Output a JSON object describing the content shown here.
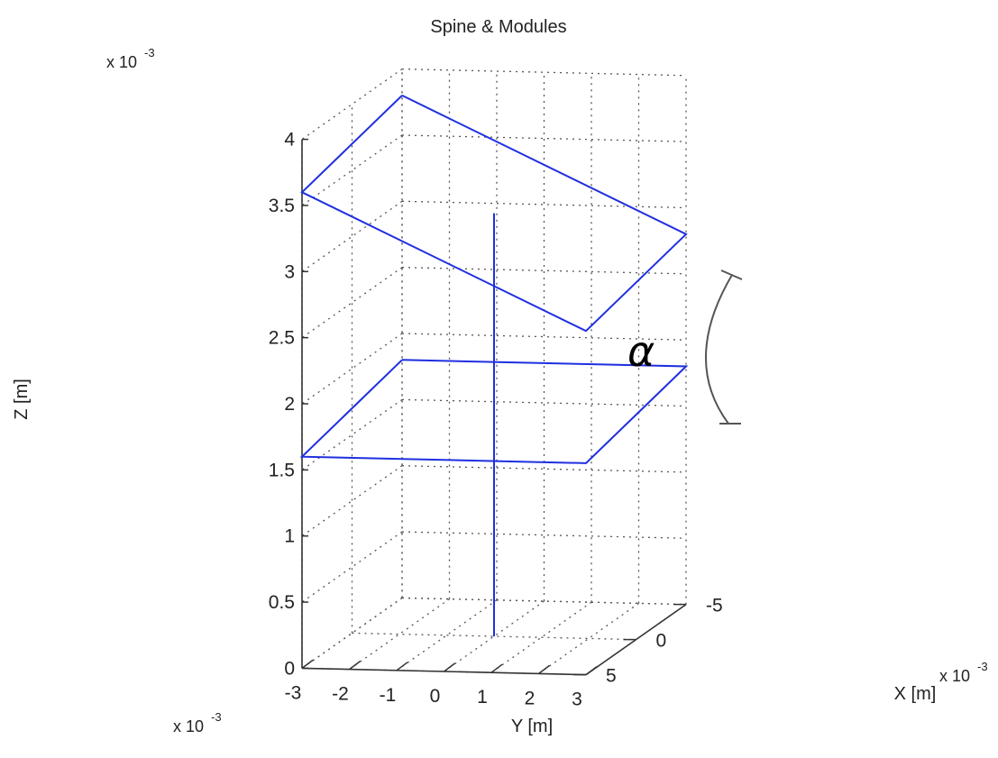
{
  "chart_data": {
    "type": "line3d",
    "title": "Spine & Modules",
    "xlabel": "X [m]",
    "ylabel": "Y [m]",
    "zlabel": "Z [m]",
    "x_exponent": "x 10",
    "x_exponent_power": "-3",
    "y_exponent": "x 10",
    "y_exponent_power": "-3",
    "z_exponent": "x 10",
    "z_exponent_power": "-3",
    "x_ticks": [
      "-5",
      "0",
      "5"
    ],
    "y_ticks": [
      "-3",
      "-2",
      "-1",
      "0",
      "1",
      "2",
      "3"
    ],
    "z_ticks": [
      "0",
      "0.5",
      "1",
      "1.5",
      "2",
      "2.5",
      "3",
      "3.5",
      "4"
    ],
    "xlim": [
      -5,
      5
    ],
    "ylim": [
      -3,
      3
    ],
    "zlim": [
      0,
      4
    ],
    "grid": true,
    "annotation": "α",
    "series": [
      {
        "x": [
          0,
          0
        ],
        "y": [
          0,
          0
        ],
        "z": [
          0,
          3.2
        ]
      },
      {
        "x": [
          -5,
          5,
          5,
          -5,
          -5
        ],
        "y": [
          -3,
          -3,
          3,
          3,
          -3
        ],
        "z": [
          1.8,
          1.6,
          1.6,
          1.8,
          1.8
        ]
      },
      {
        "x": [
          -5,
          5,
          5,
          -5,
          -5
        ],
        "y": [
          -3,
          -3,
          3,
          3,
          -3
        ],
        "z": [
          3.8,
          3.6,
          2.6,
          2.8,
          3.8
        ]
      }
    ]
  }
}
